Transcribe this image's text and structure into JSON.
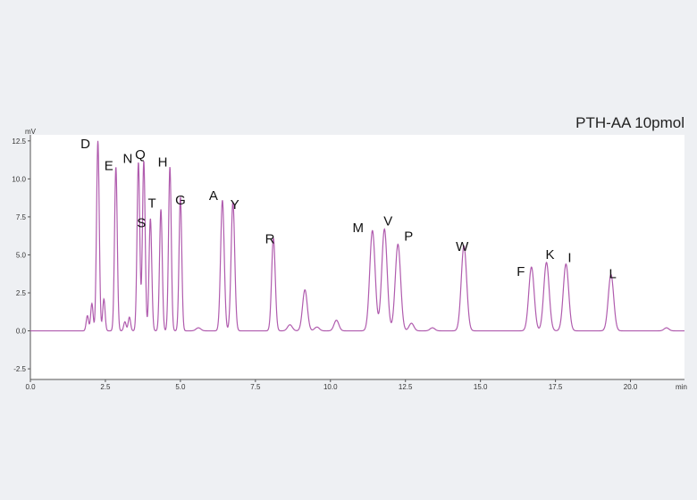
{
  "chart_data": {
    "type": "line",
    "title": "PTH-AA 10pmol",
    "ylabel": "mV",
    "xlabel": "min",
    "xlim": [
      0,
      21.8
    ],
    "ylim": [
      -3.2,
      12.9
    ],
    "x_ticks": [
      0.0,
      2.5,
      5.0,
      7.5,
      10.0,
      12.5,
      15.0,
      17.5,
      20.0
    ],
    "x_tick_labels": [
      "0.0",
      "2.5",
      "5.0",
      "7.5",
      "10.0",
      "12.5",
      "15.0",
      "17.5",
      "20.0"
    ],
    "y_ticks": [
      -2.5,
      0.0,
      2.5,
      5.0,
      7.5,
      10.0,
      12.5
    ],
    "y_tick_labels": [
      "-2.5",
      "0.0",
      "2.5",
      "5.0",
      "7.5",
      "10.0",
      "12.5"
    ],
    "grid": false,
    "line_color": "#b05cae",
    "series": [
      {
        "peaks": [
          {
            "label": "D",
            "x": 2.25,
            "y": 12.5
          },
          {
            "label": "E",
            "x": 2.85,
            "y": 10.8
          },
          {
            "label": "N",
            "x": 3.6,
            "y": 11.1
          },
          {
            "label": "Q",
            "x": 3.78,
            "y": 11.2
          },
          {
            "label": "S",
            "x": 4.0,
            "y": 7.4
          },
          {
            "label": "T",
            "x": 4.35,
            "y": 8.0
          },
          {
            "label": "H",
            "x": 4.65,
            "y": 10.8
          },
          {
            "label": "G",
            "x": 5.0,
            "y": 8.8
          },
          {
            "label": "A",
            "x": 6.4,
            "y": 8.6
          },
          {
            "label": "Y",
            "x": 6.75,
            "y": 8.5
          },
          {
            "label": "R",
            "x": 8.1,
            "y": 6.1
          },
          {
            "label": "M",
            "x": 11.4,
            "y": 6.6
          },
          {
            "label": "V",
            "x": 11.8,
            "y": 6.7
          },
          {
            "label": "P",
            "x": 12.25,
            "y": 5.7
          },
          {
            "label": "W",
            "x": 14.45,
            "y": 5.6
          },
          {
            "label": "F",
            "x": 16.7,
            "y": 4.2
          },
          {
            "label": "K",
            "x": 17.2,
            "y": 4.5
          },
          {
            "label": "I",
            "x": 17.85,
            "y": 4.4
          },
          {
            "label": "L",
            "x": 19.35,
            "y": 3.7
          }
        ],
        "minor_peaks": [
          {
            "x": 1.9,
            "y": 1.0
          },
          {
            "x": 2.05,
            "y": 1.8
          },
          {
            "x": 2.45,
            "y": 2.1
          },
          {
            "x": 3.15,
            "y": 0.6
          },
          {
            "x": 3.3,
            "y": 0.9
          },
          {
            "x": 5.6,
            "y": 0.2
          },
          {
            "x": 8.65,
            "y": 0.4
          },
          {
            "x": 9.15,
            "y": 2.7
          },
          {
            "x": 9.55,
            "y": 0.25
          },
          {
            "x": 10.2,
            "y": 0.7
          },
          {
            "x": 12.7,
            "y": 0.5
          },
          {
            "x": 13.4,
            "y": 0.2
          },
          {
            "x": 21.2,
            "y": 0.2
          }
        ]
      }
    ]
  }
}
